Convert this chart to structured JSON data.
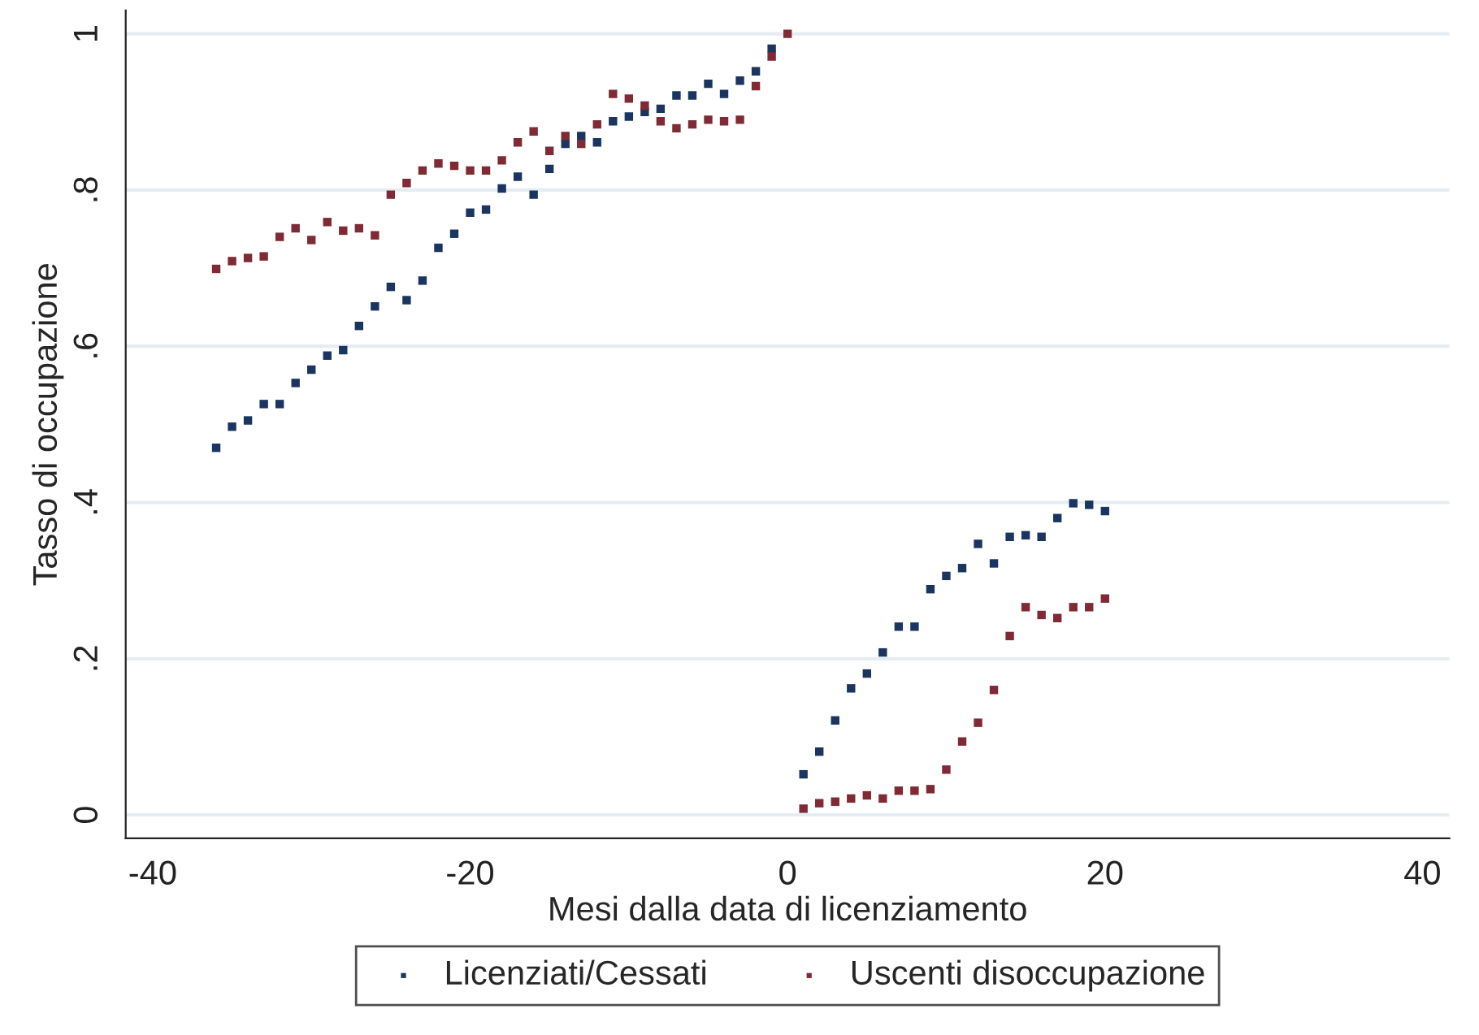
{
  "chart_data": {
    "type": "scatter",
    "xlabel": "Mesi dalla data di licenziamento",
    "ylabel": "Tasso di occupazione",
    "marker": "square",
    "grid": "y",
    "legend": "bottom",
    "xlim": [
      -41.7,
      41.7
    ],
    "ylim": [
      -0.03,
      1.03
    ],
    "xticks": [
      -40,
      -20,
      0,
      20,
      40
    ],
    "yticks": [
      {
        "value": 0,
        "label": "0"
      },
      {
        "value": 0.2,
        "label": ".2"
      },
      {
        "value": 0.4,
        "label": ".4"
      },
      {
        "value": 0.6,
        "label": ".6"
      },
      {
        "value": 0.8,
        "label": ".8"
      },
      {
        "value": 1,
        "label": "1"
      }
    ],
    "x": [
      -36,
      -35,
      -34,
      -33,
      -32,
      -31,
      -30,
      -29,
      -28,
      -27,
      -26,
      -25,
      -24,
      -23,
      -22,
      -21,
      -20,
      -19,
      -18,
      -17,
      -16,
      -15,
      -14,
      -13,
      -12,
      -11,
      -10,
      -9,
      -8,
      -7,
      -6,
      -5,
      -4,
      -3,
      -2,
      -1,
      0,
      1,
      2,
      3,
      4,
      5,
      6,
      7,
      8,
      9,
      10,
      11,
      12,
      13,
      14,
      15,
      16,
      17,
      18,
      19,
      20
    ],
    "series": [
      {
        "name": "Licenziati/Cessati",
        "color": "#1a3560",
        "values": [
          0.47,
          0.497,
          0.505,
          0.526,
          0.526,
          0.553,
          0.57,
          0.588,
          0.595,
          0.626,
          0.651,
          0.676,
          0.659,
          0.684,
          0.726,
          0.744,
          0.771,
          0.775,
          0.802,
          0.817,
          0.794,
          0.827,
          0.859,
          0.869,
          0.861,
          0.888,
          0.894,
          0.9,
          0.904,
          0.921,
          0.921,
          0.936,
          0.923,
          0.94,
          0.952,
          0.981,
          null,
          0.052,
          0.081,
          0.121,
          0.162,
          0.181,
          0.208,
          0.241,
          0.241,
          0.289,
          0.306,
          0.316,
          0.347,
          0.322,
          0.356,
          0.358,
          0.356,
          0.38,
          0.399,
          0.397,
          0.389
        ]
      },
      {
        "name": "Uscenti disoccupazione",
        "color": "#7f2a35",
        "values": [
          0.699,
          0.709,
          0.713,
          0.715,
          0.74,
          0.751,
          0.736,
          0.759,
          0.748,
          0.751,
          0.742,
          0.794,
          0.809,
          0.825,
          0.834,
          0.831,
          0.825,
          0.825,
          0.838,
          0.861,
          0.875,
          0.85,
          0.869,
          0.859,
          0.884,
          0.923,
          0.917,
          0.908,
          0.888,
          0.879,
          0.884,
          0.89,
          0.888,
          0.89,
          0.933,
          0.971,
          1.0,
          0.008,
          0.015,
          0.017,
          0.021,
          0.025,
          0.021,
          0.031,
          0.031,
          0.033,
          0.058,
          0.094,
          0.118,
          0.16,
          0.229,
          0.266,
          0.256,
          0.252,
          0.266,
          0.266,
          0.277
        ]
      }
    ]
  }
}
